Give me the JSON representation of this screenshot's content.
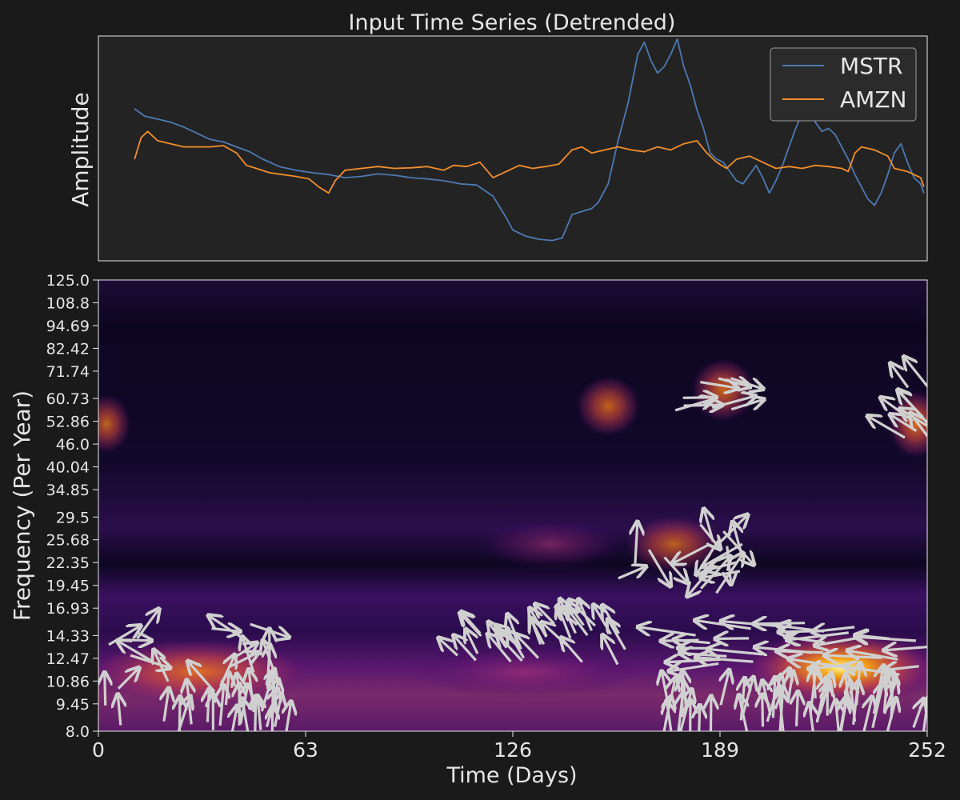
{
  "chart_data": [
    {
      "type": "line",
      "title": "Input Time Series (Detrended)",
      "xlabel": "",
      "ylabel": "Amplitude",
      "xlim": [
        0,
        252
      ],
      "ylim": [
        -1.55,
        2.1
      ],
      "grid": false,
      "legend_position": "top-right",
      "series": [
        {
          "name": "MSTR",
          "color": "#4e79b0",
          "points": [
            [
              11,
              0.92
            ],
            [
              14,
              0.8
            ],
            [
              18,
              0.75
            ],
            [
              22,
              0.7
            ],
            [
              26,
              0.62
            ],
            [
              30,
              0.52
            ],
            [
              34,
              0.42
            ],
            [
              38,
              0.38
            ],
            [
              42,
              0.3
            ],
            [
              46,
              0.22
            ],
            [
              50,
              0.1
            ],
            [
              55,
              -0.02
            ],
            [
              60,
              -0.08
            ],
            [
              65,
              -0.12
            ],
            [
              70,
              -0.15
            ],
            [
              75,
              -0.2
            ],
            [
              80,
              -0.18
            ],
            [
              85,
              -0.14
            ],
            [
              90,
              -0.16
            ],
            [
              95,
              -0.2
            ],
            [
              100,
              -0.22
            ],
            [
              105,
              -0.25
            ],
            [
              110,
              -0.3
            ],
            [
              115,
              -0.32
            ],
            [
              120,
              -0.5
            ],
            [
              124,
              -0.85
            ],
            [
              126,
              -1.05
            ],
            [
              130,
              -1.15
            ],
            [
              134,
              -1.2
            ],
            [
              138,
              -1.22
            ],
            [
              141,
              -1.18
            ],
            [
              144,
              -0.8
            ],
            [
              147,
              -0.75
            ],
            [
              150,
              -0.7
            ],
            [
              152,
              -0.6
            ],
            [
              155,
              -0.3
            ],
            [
              158,
              0.4
            ],
            [
              161,
              1.0
            ],
            [
              164,
              1.8
            ],
            [
              166,
              2.0
            ],
            [
              168,
              1.7
            ],
            [
              170,
              1.5
            ],
            [
              172,
              1.6
            ],
            [
              174,
              1.8
            ],
            [
              176,
              2.05
            ],
            [
              178,
              1.6
            ],
            [
              180,
              1.3
            ],
            [
              182,
              0.9
            ],
            [
              184,
              0.6
            ],
            [
              186,
              0.2
            ],
            [
              188,
              0.1
            ],
            [
              190,
              0.05
            ],
            [
              192,
              -0.1
            ],
            [
              194,
              -0.25
            ],
            [
              196,
              -0.3
            ],
            [
              198,
              -0.15
            ],
            [
              200,
              0.0
            ],
            [
              202,
              -0.2
            ],
            [
              204,
              -0.45
            ],
            [
              206,
              -0.25
            ],
            [
              208,
              0.0
            ],
            [
              210,
              0.3
            ],
            [
              212,
              0.6
            ],
            [
              214,
              0.85
            ],
            [
              216,
              0.95
            ],
            [
              218,
              0.7
            ],
            [
              220,
              0.55
            ],
            [
              222,
              0.6
            ],
            [
              224,
              0.5
            ],
            [
              226,
              0.3
            ],
            [
              228,
              0.1
            ],
            [
              230,
              -0.15
            ],
            [
              232,
              -0.35
            ],
            [
              234,
              -0.55
            ],
            [
              236,
              -0.65
            ],
            [
              238,
              -0.45
            ],
            [
              240,
              -0.15
            ],
            [
              242,
              0.2
            ],
            [
              244,
              0.35
            ],
            [
              246,
              0.05
            ],
            [
              248,
              -0.2
            ],
            [
              250,
              -0.3
            ],
            [
              251,
              -0.45
            ]
          ]
        },
        {
          "name": "AMZN",
          "color": "#f28e2b",
          "points": [
            [
              11,
              0.1
            ],
            [
              13,
              0.45
            ],
            [
              15,
              0.55
            ],
            [
              18,
              0.4
            ],
            [
              22,
              0.35
            ],
            [
              26,
              0.3
            ],
            [
              30,
              0.3
            ],
            [
              34,
              0.3
            ],
            [
              38,
              0.32
            ],
            [
              42,
              0.2
            ],
            [
              45,
              0.0
            ],
            [
              48,
              -0.05
            ],
            [
              52,
              -0.12
            ],
            [
              56,
              -0.15
            ],
            [
              60,
              -0.18
            ],
            [
              64,
              -0.22
            ],
            [
              67,
              -0.35
            ],
            [
              70,
              -0.45
            ],
            [
              72,
              -0.25
            ],
            [
              75,
              -0.08
            ],
            [
              80,
              -0.05
            ],
            [
              85,
              -0.02
            ],
            [
              90,
              -0.05
            ],
            [
              95,
              -0.04
            ],
            [
              100,
              -0.02
            ],
            [
              105,
              -0.08
            ],
            [
              108,
              0.0
            ],
            [
              112,
              -0.02
            ],
            [
              116,
              0.05
            ],
            [
              120,
              -0.2
            ],
            [
              124,
              -0.1
            ],
            [
              128,
              0.0
            ],
            [
              132,
              -0.05
            ],
            [
              136,
              -0.02
            ],
            [
              140,
              0.02
            ],
            [
              144,
              0.25
            ],
            [
              147,
              0.3
            ],
            [
              150,
              0.2
            ],
            [
              154,
              0.25
            ],
            [
              158,
              0.3
            ],
            [
              162,
              0.25
            ],
            [
              166,
              0.22
            ],
            [
              170,
              0.3
            ],
            [
              174,
              0.25
            ],
            [
              178,
              0.35
            ],
            [
              182,
              0.4
            ],
            [
              185,
              0.2
            ],
            [
              188,
              0.05
            ],
            [
              191,
              -0.05
            ],
            [
              194,
              0.1
            ],
            [
              198,
              0.15
            ],
            [
              202,
              0.05
            ],
            [
              206,
              -0.05
            ],
            [
              210,
              -0.02
            ],
            [
              214,
              -0.05
            ],
            [
              218,
              0.0
            ],
            [
              222,
              -0.02
            ],
            [
              226,
              -0.05
            ],
            [
              228,
              -0.1
            ],
            [
              230,
              0.2
            ],
            [
              232,
              0.3
            ],
            [
              236,
              0.25
            ],
            [
              240,
              0.15
            ],
            [
              242,
              -0.05
            ],
            [
              246,
              -0.1
            ],
            [
              250,
              -0.2
            ],
            [
              251,
              -0.35
            ]
          ]
        }
      ]
    },
    {
      "type": "heatmap",
      "title": "",
      "xlabel": "Time (Days)",
      "ylabel": "Frequency (Per Year)",
      "xlim": [
        0,
        252
      ],
      "x_ticks": [
        "0",
        "63",
        "126",
        "189",
        "252"
      ],
      "y_scale": "log",
      "y_ticks": [
        "125.0",
        "108.8",
        "94.69",
        "82.42",
        "71.74",
        "60.73",
        "52.86",
        "46.0",
        "40.04",
        "34.85",
        "29.5",
        "25.68",
        "22.35",
        "19.45",
        "16.93",
        "14.33",
        "12.47",
        "10.86",
        "9.45",
        "8.0"
      ],
      "colormap": "inferno",
      "arrow_color": "#d0d0d0",
      "hotspots": [
        {
          "x": 0,
          "x_end": 60,
          "y": 11.5,
          "intensity": 0.75
        },
        {
          "x": 200,
          "x_end": 252,
          "y": 11.8,
          "intensity": 1.0
        },
        {
          "x": 100,
          "x_end": 160,
          "y": 11.5,
          "intensity": 0.35
        },
        {
          "x": 165,
          "x_end": 185,
          "y": 25.0,
          "intensity": 0.5
        },
        {
          "x": 120,
          "x_end": 155,
          "y": 25.0,
          "intensity": 0.35
        },
        {
          "x": 150,
          "x_end": 160,
          "y": 58.0,
          "intensity": 0.6
        },
        {
          "x": 185,
          "x_end": 195,
          "y": 64.0,
          "intensity": 0.7
        },
        {
          "x": 245,
          "x_end": 252,
          "y": 52.0,
          "intensity": 0.85
        },
        {
          "x": 0,
          "x_end": 5,
          "y": 52.0,
          "intensity": 0.55
        }
      ]
    }
  ]
}
